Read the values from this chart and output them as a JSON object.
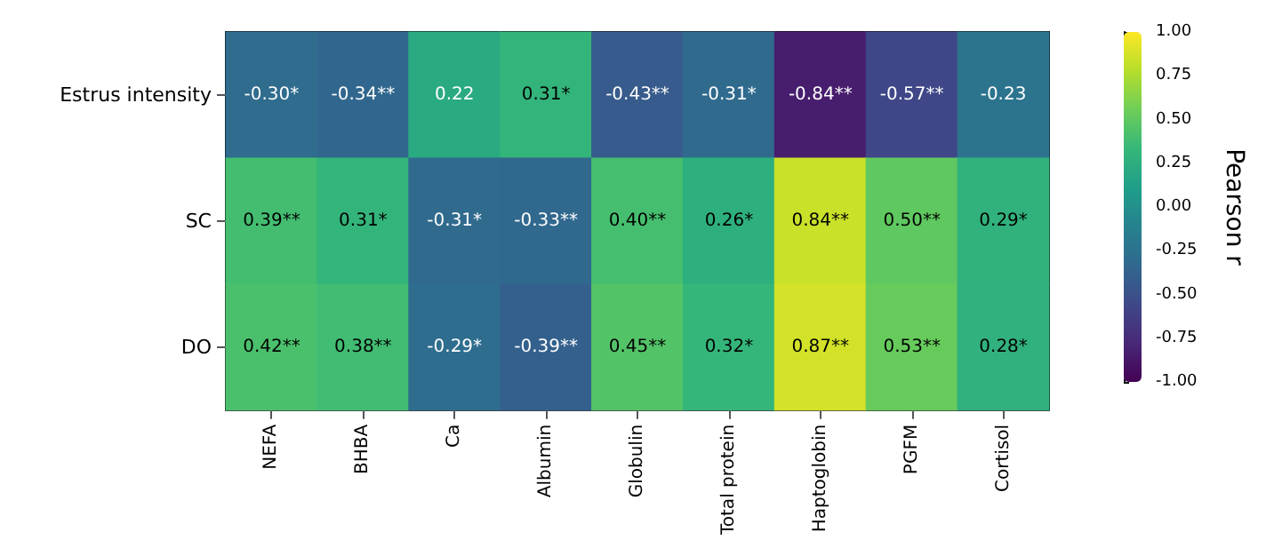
{
  "chart_data": {
    "type": "heatmap",
    "clabel": "Pearson r",
    "categories": [
      "NEFA",
      "BHBA",
      "Ca",
      "Albumin",
      "Globulin",
      "Total protein",
      "Haptoglobin",
      "PGFM",
      "Cortisol"
    ],
    "y_categories": [
      "Estrus intensity",
      "SC",
      "DO"
    ],
    "cells": [
      [
        -0.3,
        -0.34,
        0.22,
        0.31,
        -0.43,
        -0.31,
        -0.84,
        -0.57,
        -0.23
      ],
      [
        0.39,
        0.31,
        -0.31,
        -0.33,
        0.4,
        0.26,
        0.84,
        0.5,
        0.29
      ],
      [
        0.42,
        0.38,
        -0.29,
        -0.39,
        0.45,
        0.32,
        0.87,
        0.53,
        0.28
      ]
    ],
    "cell_labels": [
      [
        "-0.30*",
        "-0.34**",
        "0.22",
        "0.31*",
        "-0.43**",
        "-0.31*",
        "-0.84**",
        "-0.57**",
        "-0.23"
      ],
      [
        "0.39**",
        "0.31*",
        "-0.31*",
        "-0.33**",
        "0.40**",
        "0.26*",
        "0.84**",
        "0.50**",
        "0.29*"
      ],
      [
        "0.42**",
        "0.38**",
        "-0.29*",
        "-0.39**",
        "0.45**",
        "0.32*",
        "0.87**",
        "0.53**",
        "0.28*"
      ]
    ],
    "clim": [
      -1,
      1
    ],
    "cticks": [
      {
        "value": -1,
        "label": "-1.00"
      },
      {
        "value": -0.75,
        "label": "-0.75"
      },
      {
        "value": -0.5,
        "label": "-0.50"
      },
      {
        "value": -0.25,
        "label": "-0.25"
      },
      {
        "value": 0,
        "label": "0.00"
      },
      {
        "value": 0.25,
        "label": "0.25"
      },
      {
        "value": 0.5,
        "label": "0.50"
      },
      {
        "value": 0.75,
        "label": "0.75"
      },
      {
        "value": 1,
        "label": "1.00"
      }
    ]
  }
}
